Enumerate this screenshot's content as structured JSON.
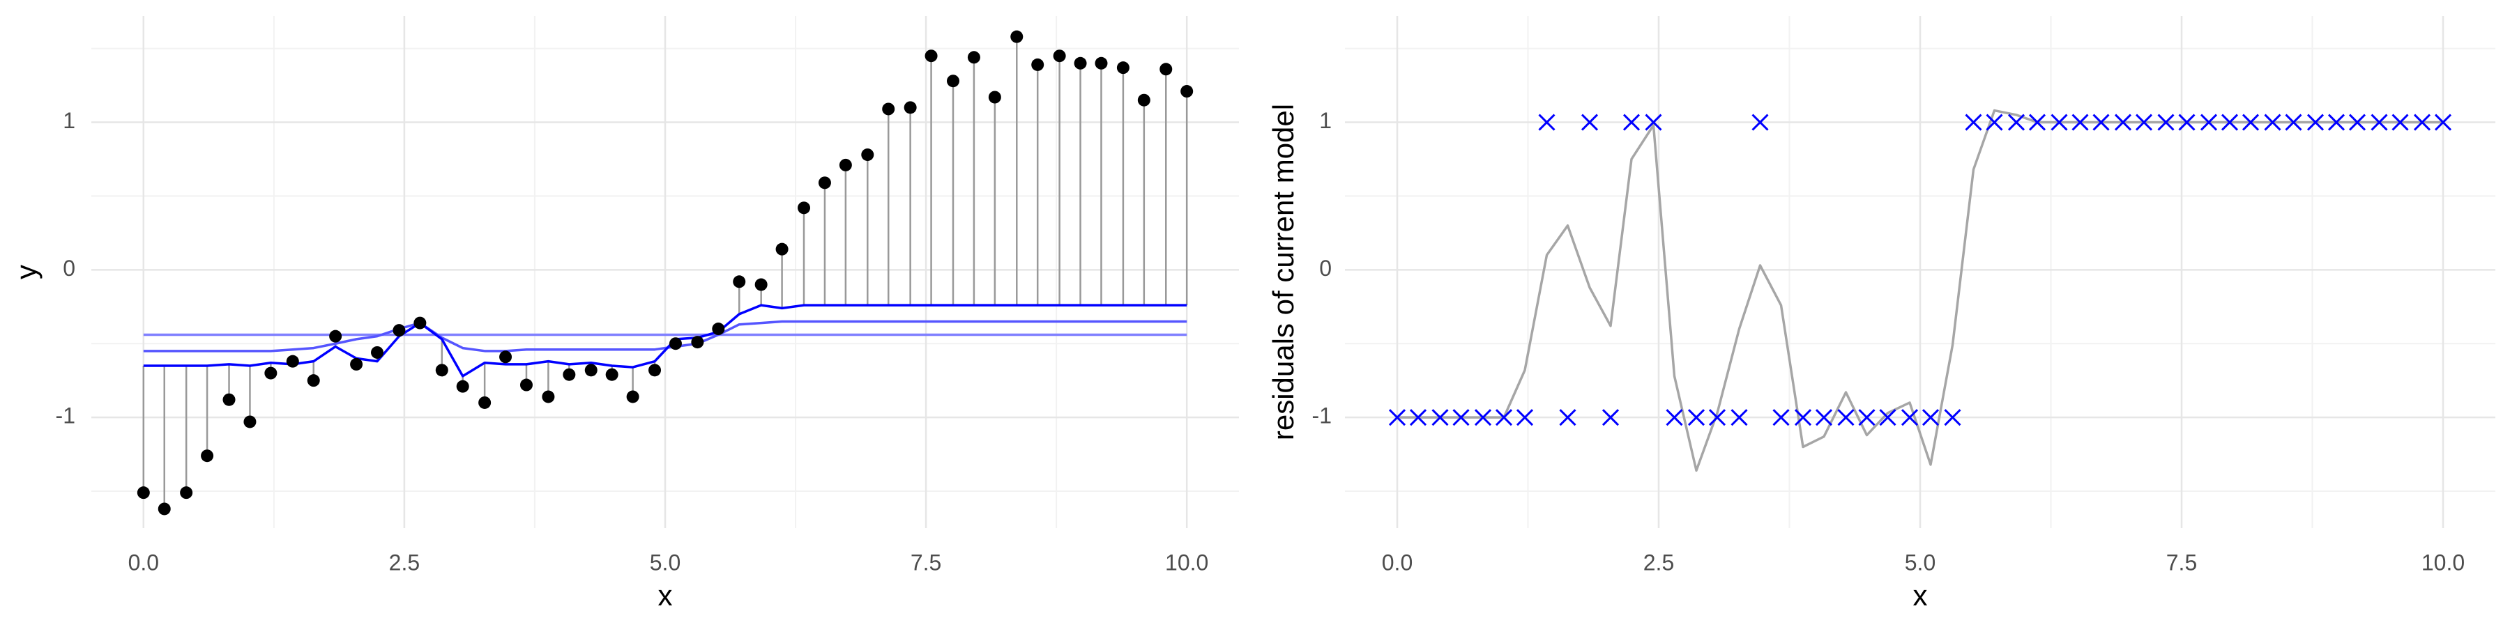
{
  "chart_data": [
    {
      "type": "scatter",
      "x_label": "x",
      "y_label": "y",
      "x": [
        0,
        0.2,
        0.41,
        0.61,
        0.82,
        1.02,
        1.22,
        1.43,
        1.63,
        1.84,
        2.04,
        2.24,
        2.45,
        2.65,
        2.86,
        3.06,
        3.27,
        3.47,
        3.67,
        3.88,
        4.08,
        4.29,
        4.49,
        4.69,
        4.9,
        5.1,
        5.31,
        5.51,
        5.71,
        5.92,
        6.12,
        6.33,
        6.53,
        6.73,
        6.94,
        7.14,
        7.35,
        7.55,
        7.76,
        7.96,
        8.16,
        8.37,
        8.57,
        8.78,
        8.98,
        9.18,
        9.39,
        9.59,
        9.8,
        10
      ],
      "series": [
        {
          "style": "points",
          "color": "#000000",
          "values": [
            -1.51,
            -1.62,
            -1.51,
            -1.26,
            -0.88,
            -1.03,
            -0.7,
            -0.62,
            -0.75,
            -0.45,
            -0.64,
            -0.56,
            -0.41,
            -0.36,
            -0.68,
            -0.79,
            -0.9,
            -0.59,
            -0.78,
            -0.86,
            -0.71,
            -0.68,
            -0.71,
            -0.86,
            -0.68,
            -0.5,
            -0.49,
            -0.4,
            -0.08,
            -0.1,
            0.14,
            0.42,
            0.59,
            0.71,
            0.78,
            1.09,
            1.1,
            1.45,
            1.28,
            1.44,
            1.17,
            1.58,
            1.39,
            1.45,
            1.4,
            1.4,
            1.37,
            1.15,
            1.36,
            1.21
          ]
        },
        {
          "style": "line",
          "color": "#8080ff",
          "values": [
            -0.44,
            -0.44,
            -0.44,
            -0.44,
            -0.44,
            -0.44,
            -0.44,
            -0.44,
            -0.44,
            -0.44,
            -0.44,
            -0.44,
            -0.44,
            -0.44,
            -0.44,
            -0.44,
            -0.44,
            -0.44,
            -0.44,
            -0.44,
            -0.44,
            -0.44,
            -0.44,
            -0.44,
            -0.44,
            -0.44,
            -0.44,
            -0.44,
            -0.44,
            -0.44,
            -0.44,
            -0.44,
            -0.44,
            -0.44,
            -0.44,
            -0.44,
            -0.44,
            -0.44,
            -0.44,
            -0.44,
            -0.44,
            -0.44,
            -0.44,
            -0.44,
            -0.44,
            -0.44,
            -0.44,
            -0.44,
            -0.44,
            -0.44
          ]
        },
        {
          "style": "line",
          "color": "#5555ff",
          "values": [
            -0.55,
            -0.55,
            -0.55,
            -0.55,
            -0.55,
            -0.55,
            -0.55,
            -0.54,
            -0.53,
            -0.5,
            -0.47,
            -0.45,
            -0.4,
            -0.36,
            -0.46,
            -0.53,
            -0.55,
            -0.55,
            -0.54,
            -0.54,
            -0.54,
            -0.54,
            -0.54,
            -0.54,
            -0.54,
            -0.52,
            -0.5,
            -0.44,
            -0.37,
            -0.36,
            -0.35,
            -0.35,
            -0.35,
            -0.35,
            -0.35,
            -0.35,
            -0.35,
            -0.35,
            -0.35,
            -0.35,
            -0.35,
            -0.35,
            -0.35,
            -0.35,
            -0.35,
            -0.35,
            -0.35,
            -0.35,
            -0.35,
            -0.35
          ]
        },
        {
          "style": "line",
          "color": "#0000ff",
          "values": [
            -0.65,
            -0.65,
            -0.65,
            -0.65,
            -0.64,
            -0.65,
            -0.63,
            -0.64,
            -0.62,
            -0.52,
            -0.6,
            -0.62,
            -0.45,
            -0.36,
            -0.47,
            -0.72,
            -0.63,
            -0.64,
            -0.64,
            -0.62,
            -0.64,
            -0.63,
            -0.65,
            -0.66,
            -0.62,
            -0.47,
            -0.46,
            -0.42,
            -0.3,
            -0.24,
            -0.26,
            -0.24,
            -0.24,
            -0.24,
            -0.24,
            -0.24,
            -0.24,
            -0.24,
            -0.24,
            -0.24,
            -0.24,
            -0.24,
            -0.24,
            -0.24,
            -0.24,
            -0.24,
            -0.24,
            -0.24,
            -0.24,
            -0.24
          ]
        }
      ],
      "stem_color": "#999999",
      "xlim": [
        -0.5,
        10.5
      ],
      "ylim": [
        -1.75,
        1.72
      ],
      "xticks": [
        {
          "value": 0,
          "label": "0.0"
        },
        2.5,
        {
          "value": 5,
          "label": "5.0"
        },
        7.5,
        {
          "value": 10,
          "label": "10.0"
        }
      ],
      "yticks": [
        -1,
        0,
        1
      ],
      "grid": true,
      "minor_grid": true
    },
    {
      "type": "scatter",
      "x_label": "x",
      "y_label": "residuals of current model",
      "x": [
        0,
        0.2,
        0.41,
        0.61,
        0.82,
        1.02,
        1.22,
        1.43,
        1.63,
        1.84,
        2.04,
        2.24,
        2.45,
        2.65,
        2.86,
        3.06,
        3.27,
        3.47,
        3.67,
        3.88,
        4.08,
        4.29,
        4.49,
        4.69,
        4.9,
        5.1,
        5.31,
        5.51,
        5.71,
        5.92,
        6.12,
        6.33,
        6.53,
        6.73,
        6.94,
        7.14,
        7.35,
        7.55,
        7.76,
        7.96,
        8.16,
        8.37,
        8.57,
        8.78,
        8.98,
        9.18,
        9.39,
        9.59,
        9.8,
        10
      ],
      "series": [
        {
          "style": "line",
          "color": "#a6a6a6",
          "values": [
            -1,
            -1,
            -1,
            -1,
            -1,
            -1,
            -0.68,
            0.1,
            0.3,
            -0.12,
            -0.38,
            0.75,
            0.98,
            -0.72,
            -1.36,
            -0.97,
            -0.4,
            0.03,
            -0.24,
            -1.2,
            -1.13,
            -0.83,
            -1.12,
            -0.97,
            -0.9,
            -1.32,
            -0.51,
            0.68,
            1.08,
            1.05,
            1,
            1,
            1,
            1,
            1,
            1,
            1,
            1,
            1,
            1,
            1,
            1,
            1,
            1,
            1,
            1,
            1,
            1,
            1,
            1
          ]
        },
        {
          "style": "cross",
          "color": "#0000ff",
          "values": [
            -1,
            -1,
            -1,
            -1,
            -1,
            -1,
            -1,
            1,
            -1,
            1,
            -1,
            1,
            1,
            -1,
            -1,
            -1,
            -1,
            1,
            -1,
            -1,
            -1,
            -1,
            -1,
            -1,
            -1,
            -1,
            -1,
            1,
            1,
            1,
            1,
            1,
            1,
            1,
            1,
            1,
            1,
            1,
            1,
            1,
            1,
            1,
            1,
            1,
            1,
            1,
            1,
            1,
            1,
            1
          ]
        }
      ],
      "xlim": [
        -0.5,
        10.5
      ],
      "ylim": [
        -1.75,
        1.72
      ],
      "xticks": [
        {
          "value": 0,
          "label": "0.0"
        },
        2.5,
        {
          "value": 5,
          "label": "5.0"
        },
        7.5,
        {
          "value": 10,
          "label": "10.0"
        }
      ],
      "yticks": [
        -1,
        0,
        1
      ],
      "grid": true,
      "minor_grid": true
    }
  ]
}
